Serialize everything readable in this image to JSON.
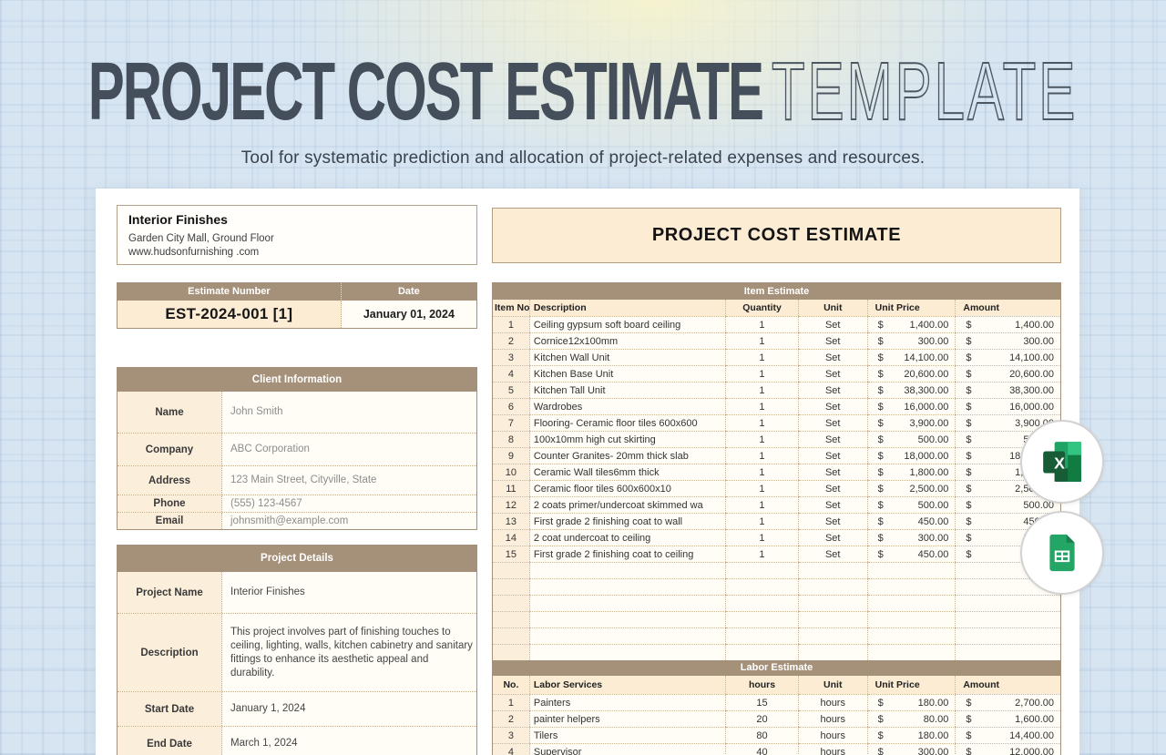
{
  "page": {
    "title_bold": "PROJECT COST ESTIMATE",
    "title_thin": "TEMPLATE",
    "subtitle": "Tool for systematic prediction and allocation of project-related expenses and resources."
  },
  "company": {
    "name": "Interior Finishes",
    "address": "Garden City Mall, Ground Floor",
    "website": "www.hudsonfurnishing .com"
  },
  "estimate_meta": {
    "number_label": "Estimate Number",
    "date_label": "Date",
    "number": "EST-2024-001 [1]",
    "date": "January 01, 2024"
  },
  "client": {
    "header": "Client Information",
    "rows": [
      {
        "label": "Name",
        "value": "John Smith"
      },
      {
        "label": "Company",
        "value": "ABC Corporation"
      },
      {
        "label": "Address",
        "value": "123 Main Street, Cityville, State"
      },
      {
        "label": "Phone",
        "value": "(555) 123-4567"
      },
      {
        "label": "Email",
        "value": "johnsmith@example.com"
      }
    ]
  },
  "project": {
    "header": "Project Details",
    "rows": [
      {
        "label": "Project Name",
        "value": "Interior Finishes"
      },
      {
        "label": "Description",
        "value": "This project involves part of finishing touches to ceiling, lighting, walls, kitchen cabinetry and sanitary fittings to enhance its aesthetic appeal and durability."
      },
      {
        "label": "Start Date",
        "value": "January 1, 2024"
      },
      {
        "label": "End Date",
        "value": "March 1, 2024"
      }
    ]
  },
  "sheet": {
    "title": "PROJECT COST ESTIMATE",
    "currency": "$",
    "item_table": {
      "header": "Item Estimate",
      "columns": [
        "Item No.",
        "Description",
        "Quantity",
        "Unit",
        "Unit Price",
        "Amount"
      ],
      "empty_rows": 6,
      "rows": [
        {
          "no": "1",
          "description": "Ceiling gypsum soft board ceiling",
          "qty": "1",
          "unit": "Set",
          "unit_price": "1,400.00",
          "amount": "1,400.00"
        },
        {
          "no": "2",
          "description": "Cornice12x100mm",
          "qty": "1",
          "unit": "Set",
          "unit_price": "300.00",
          "amount": "300.00"
        },
        {
          "no": "3",
          "description": "Kitchen Wall Unit",
          "qty": "1",
          "unit": "Set",
          "unit_price": "14,100.00",
          "amount": "14,100.00"
        },
        {
          "no": "4",
          "description": "Kitchen Base Unit",
          "qty": "1",
          "unit": "Set",
          "unit_price": "20,600.00",
          "amount": "20,600.00"
        },
        {
          "no": "5",
          "description": "Kitchen Tall Unit",
          "qty": "1",
          "unit": "Set",
          "unit_price": "38,300.00",
          "amount": "38,300.00"
        },
        {
          "no": "6",
          "description": "Wardrobes",
          "qty": "1",
          "unit": "Set",
          "unit_price": "16,000.00",
          "amount": "16,000.00"
        },
        {
          "no": "7",
          "description": "Flooring- Ceramic floor tiles 600x600",
          "qty": "1",
          "unit": "Set",
          "unit_price": "3,900.00",
          "amount": "3,900.00"
        },
        {
          "no": "8",
          "description": "100x10mm high cut skirting",
          "qty": "1",
          "unit": "Set",
          "unit_price": "500.00",
          "amount": "500.00"
        },
        {
          "no": "9",
          "description": "Counter Granites- 20mm thick slab",
          "qty": "1",
          "unit": "Set",
          "unit_price": "18,000.00",
          "amount": "18,000.00"
        },
        {
          "no": "10",
          "description": "Ceramic Wall tiles6mm thick",
          "qty": "1",
          "unit": "Set",
          "unit_price": "1,800.00",
          "amount": "1,800.00"
        },
        {
          "no": "11",
          "description": "Ceramic floor tiles 600x600x10",
          "qty": "1",
          "unit": "Set",
          "unit_price": "2,500.00",
          "amount": "2,500.00"
        },
        {
          "no": "12",
          "description": "2 coats primer/undercoat skimmed wa",
          "qty": "1",
          "unit": "Set",
          "unit_price": "500.00",
          "amount": "500.00"
        },
        {
          "no": "13",
          "description": "First grade 2 finishing coat to wall",
          "qty": "1",
          "unit": "Set",
          "unit_price": "450.00",
          "amount": "450.00"
        },
        {
          "no": "14",
          "description": "2 coat undercoat to ceiling",
          "qty": "1",
          "unit": "Set",
          "unit_price": "300.00",
          "amount": "300.00"
        },
        {
          "no": "15",
          "description": "First grade 2 finishing coat to ceiling",
          "qty": "1",
          "unit": "Set",
          "unit_price": "450.00",
          "amount": "450.00"
        }
      ]
    },
    "labor_table": {
      "header": "Labor Estimate",
      "columns": [
        "No.",
        "Labor Services",
        "hours",
        "Unit",
        "Unit Price",
        "Amount"
      ],
      "rows": [
        {
          "no": "1",
          "description": "Painters",
          "qty": "15",
          "unit": "hours",
          "unit_price": "180.00",
          "amount": "2,700.00"
        },
        {
          "no": "2",
          "description": "painter helpers",
          "qty": "20",
          "unit": "hours",
          "unit_price": "80.00",
          "amount": "1,600.00"
        },
        {
          "no": "3",
          "description": "Tilers",
          "qty": "80",
          "unit": "hours",
          "unit_price": "180.00",
          "amount": "14,400.00"
        },
        {
          "no": "4",
          "description": "Supervisor",
          "qty": "40",
          "unit": "hours",
          "unit_price": "300.00",
          "amount": "12,000.00"
        }
      ]
    }
  },
  "badges": {
    "excel_label": "excel-file",
    "sheets_label": "google-sheets-file"
  },
  "colors": {
    "accent_brown": "#a5917a",
    "cream": "#fbecd3",
    "sheet_white": "#fffdf6",
    "page_background": "#d7e5f2",
    "title_text": "#454f5b",
    "excel_green": "#185c37",
    "sheets_green": "#23a566"
  }
}
